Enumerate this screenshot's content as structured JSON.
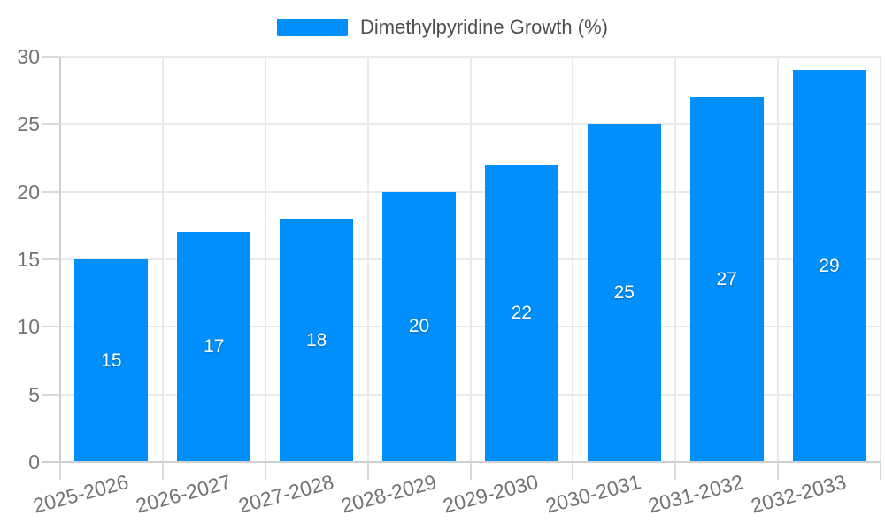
{
  "legend": {
    "items": [
      {
        "label": "Dimethylpyridine Growth (%)",
        "color": "#008FFB"
      }
    ]
  },
  "chart_data": {
    "type": "bar",
    "title": "Dimethylpyridine Growth (%)",
    "categories": [
      "2025-2026",
      "2026-2027",
      "2027-2028",
      "2028-2029",
      "2029-2030",
      "2030-2031",
      "2031-2032",
      "2032-2033"
    ],
    "values": [
      15,
      17,
      18,
      20,
      22,
      25,
      27,
      29
    ],
    "series": [
      {
        "name": "Dimethylpyridine Growth (%)",
        "values": [
          15,
          17,
          18,
          20,
          22,
          25,
          27,
          29
        ]
      }
    ],
    "xlabel": "",
    "ylabel": "",
    "ylim": [
      0,
      30
    ],
    "yticks": [
      0,
      5,
      10,
      15,
      20,
      25,
      30
    ],
    "grid": true,
    "legend_position": "top",
    "bar_color": "#008FFB",
    "value_label_color": "#ffffff",
    "value_label_position": "inside-center",
    "x_label_rotation": -15
  },
  "colors": {
    "background": "#ffffff",
    "grid": "#e9e9e9",
    "axis": "#cfcfcf",
    "tick": "#d9d9d9",
    "axis_label": "#737373",
    "legend_text": "#4f4f4f"
  }
}
